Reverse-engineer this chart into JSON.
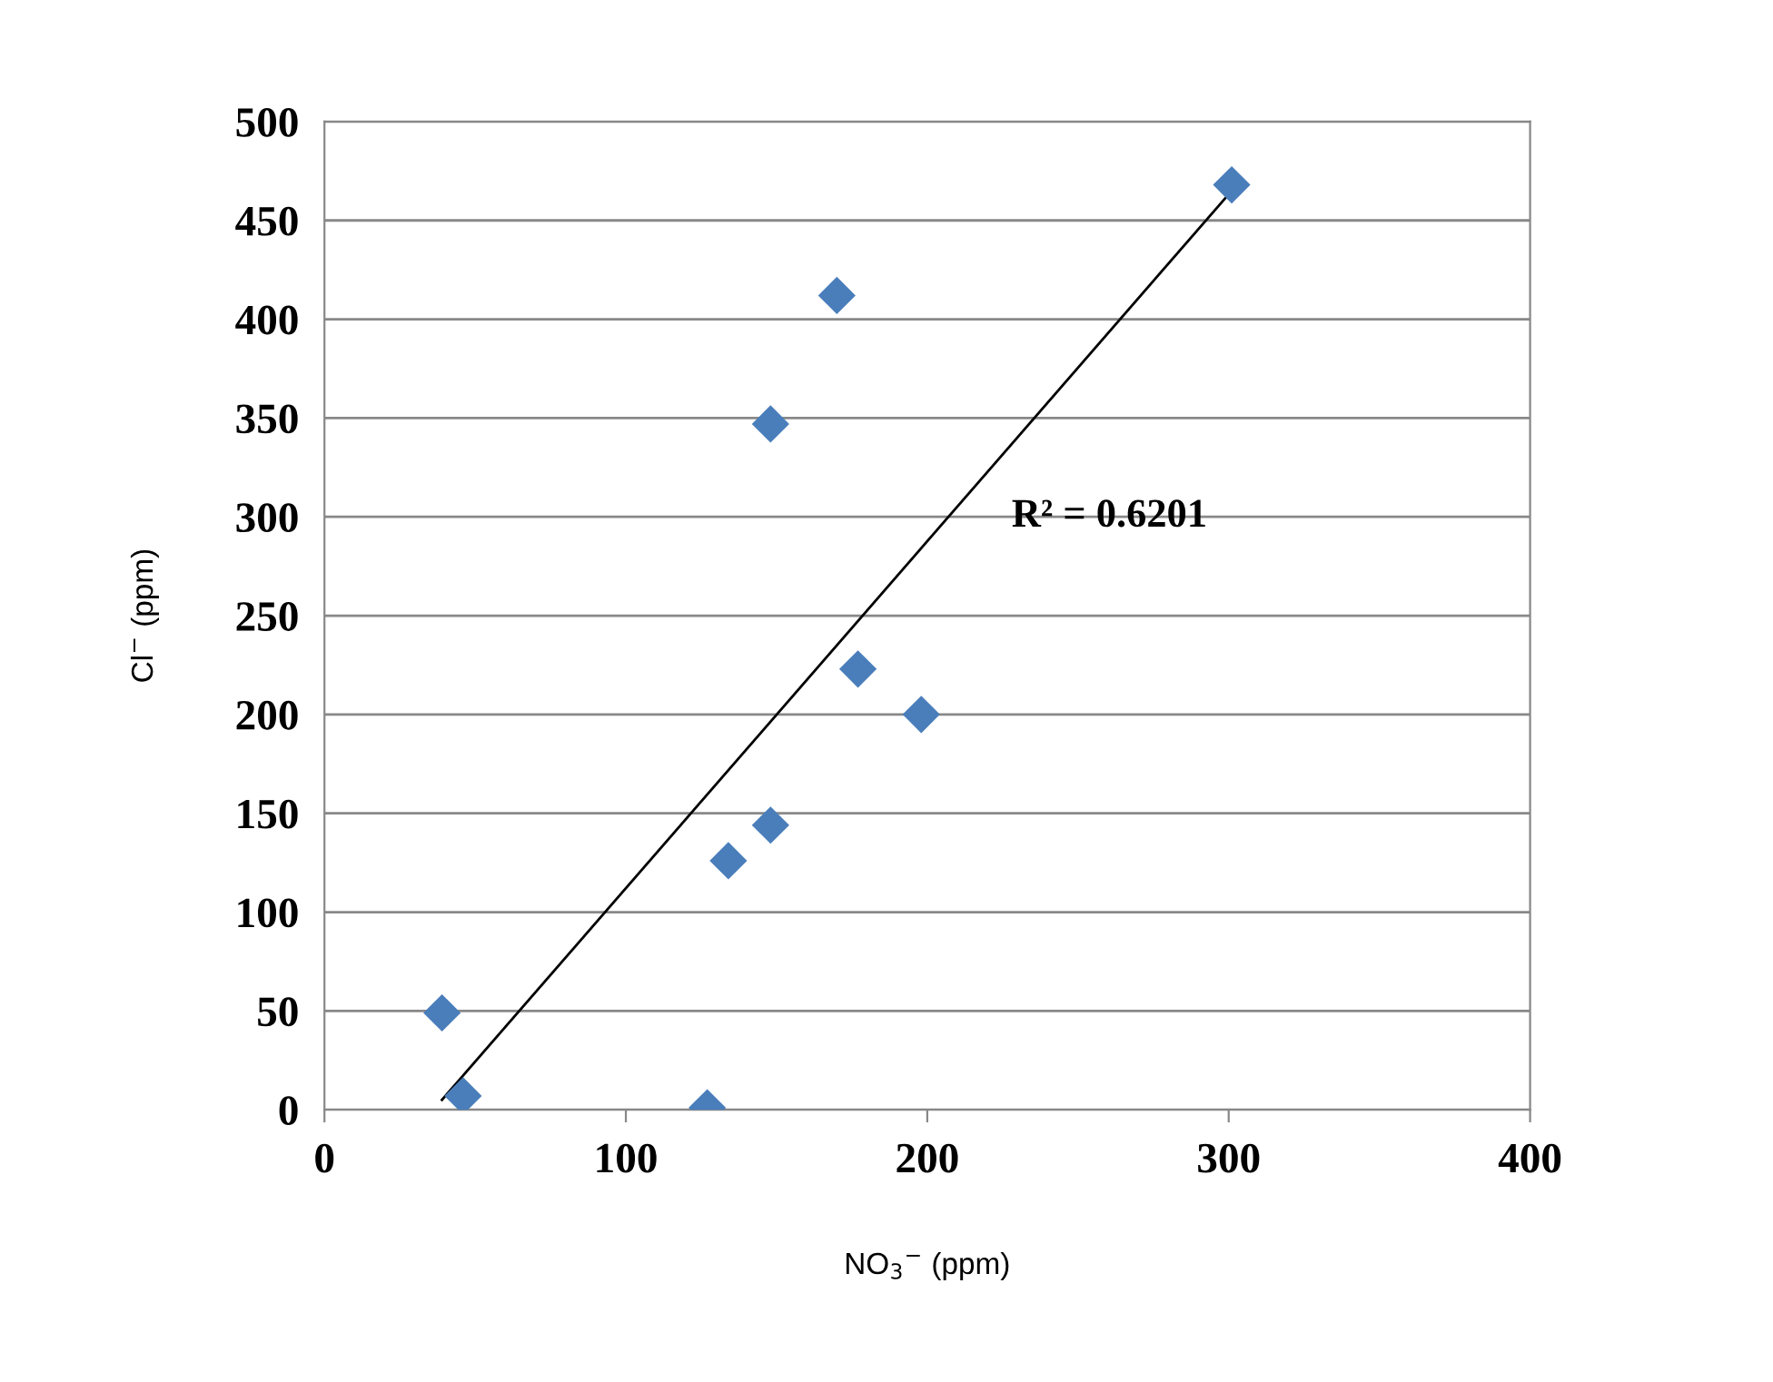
{
  "chart_data": {
    "type": "scatter",
    "xlabel": "NO$_{3}$$^{−}$ (ppm)",
    "ylabel": "Cl$^{−}$ (ppm)",
    "series": [
      {
        "color": "#4a7ebb",
        "marker": "diamond",
        "x": [
          39,
          46,
          127,
          134,
          148,
          148,
          170,
          177,
          198,
          301
        ],
        "values": [
          49,
          7,
          1,
          126,
          144,
          347,
          412,
          223,
          200,
          468
        ]
      },
      {
        "type": "line",
        "color": "#000000",
        "marker": "none",
        "line_style": "solid",
        "x": [
          39,
          301
        ],
        "values": [
          5,
          465
        ]
      }
    ],
    "xlim": [
      0,
      400
    ],
    "xticks": [
      0,
      100,
      200,
      300,
      400
    ],
    "ylim": [
      0,
      500
    ],
    "yticks": [
      0,
      50,
      100,
      150,
      200,
      250,
      300,
      350,
      400,
      450,
      500
    ],
    "grid": "y",
    "legend": false,
    "annotations": [
      "R² = 0.6201"
    ]
  }
}
